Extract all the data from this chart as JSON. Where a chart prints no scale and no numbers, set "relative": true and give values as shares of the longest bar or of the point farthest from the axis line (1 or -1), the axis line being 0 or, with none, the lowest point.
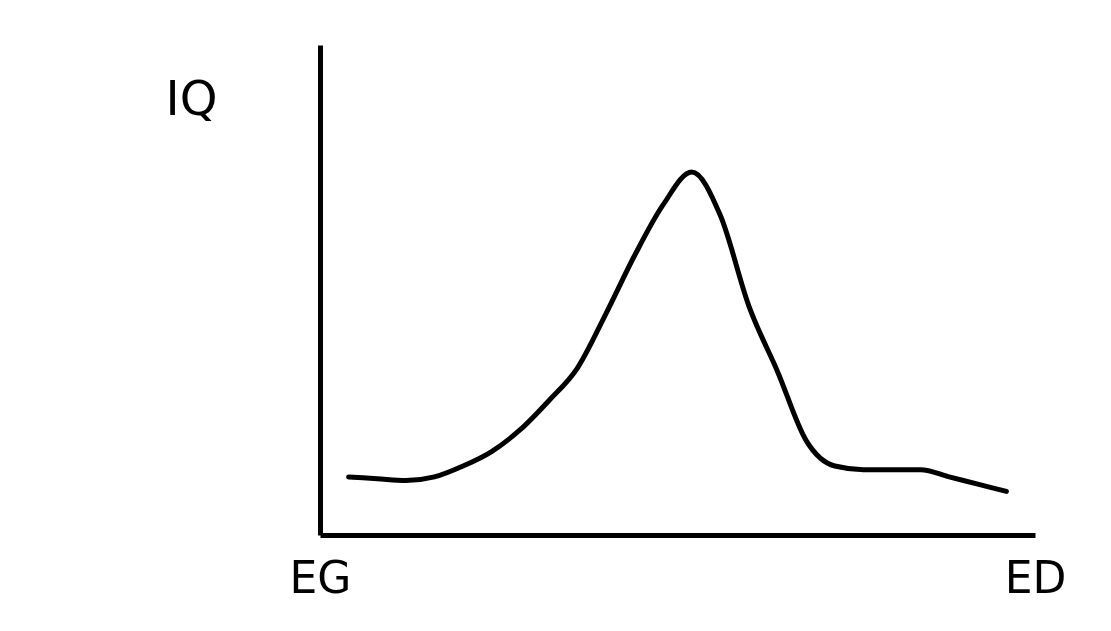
{
  "chart_data": {
    "type": "line",
    "relative": true,
    "ylabel": "IQ",
    "grid": false,
    "legend": false,
    "marker": "none",
    "line_style": "solid",
    "categories": [
      "EG",
      null,
      null,
      null,
      null,
      null,
      null,
      null,
      null,
      null,
      null,
      null,
      null,
      null,
      null,
      null,
      null,
      null,
      null,
      null,
      null,
      null,
      null,
      null,
      null,
      "ED"
    ],
    "series": [
      {
        "color": "#000000",
        "values": [
          null,
          0.16,
          0.155,
          0.15,
          0.16,
          0.19,
          0.23,
          0.29,
          0.37,
          0.46,
          0.61,
          0.77,
          0.91,
          1,
          0.88,
          0.63,
          0.45,
          0.26,
          0.19,
          0.18,
          0.18,
          0.18,
          0.16,
          0.14,
          0.12,
          null
        ]
      }
    ]
  }
}
